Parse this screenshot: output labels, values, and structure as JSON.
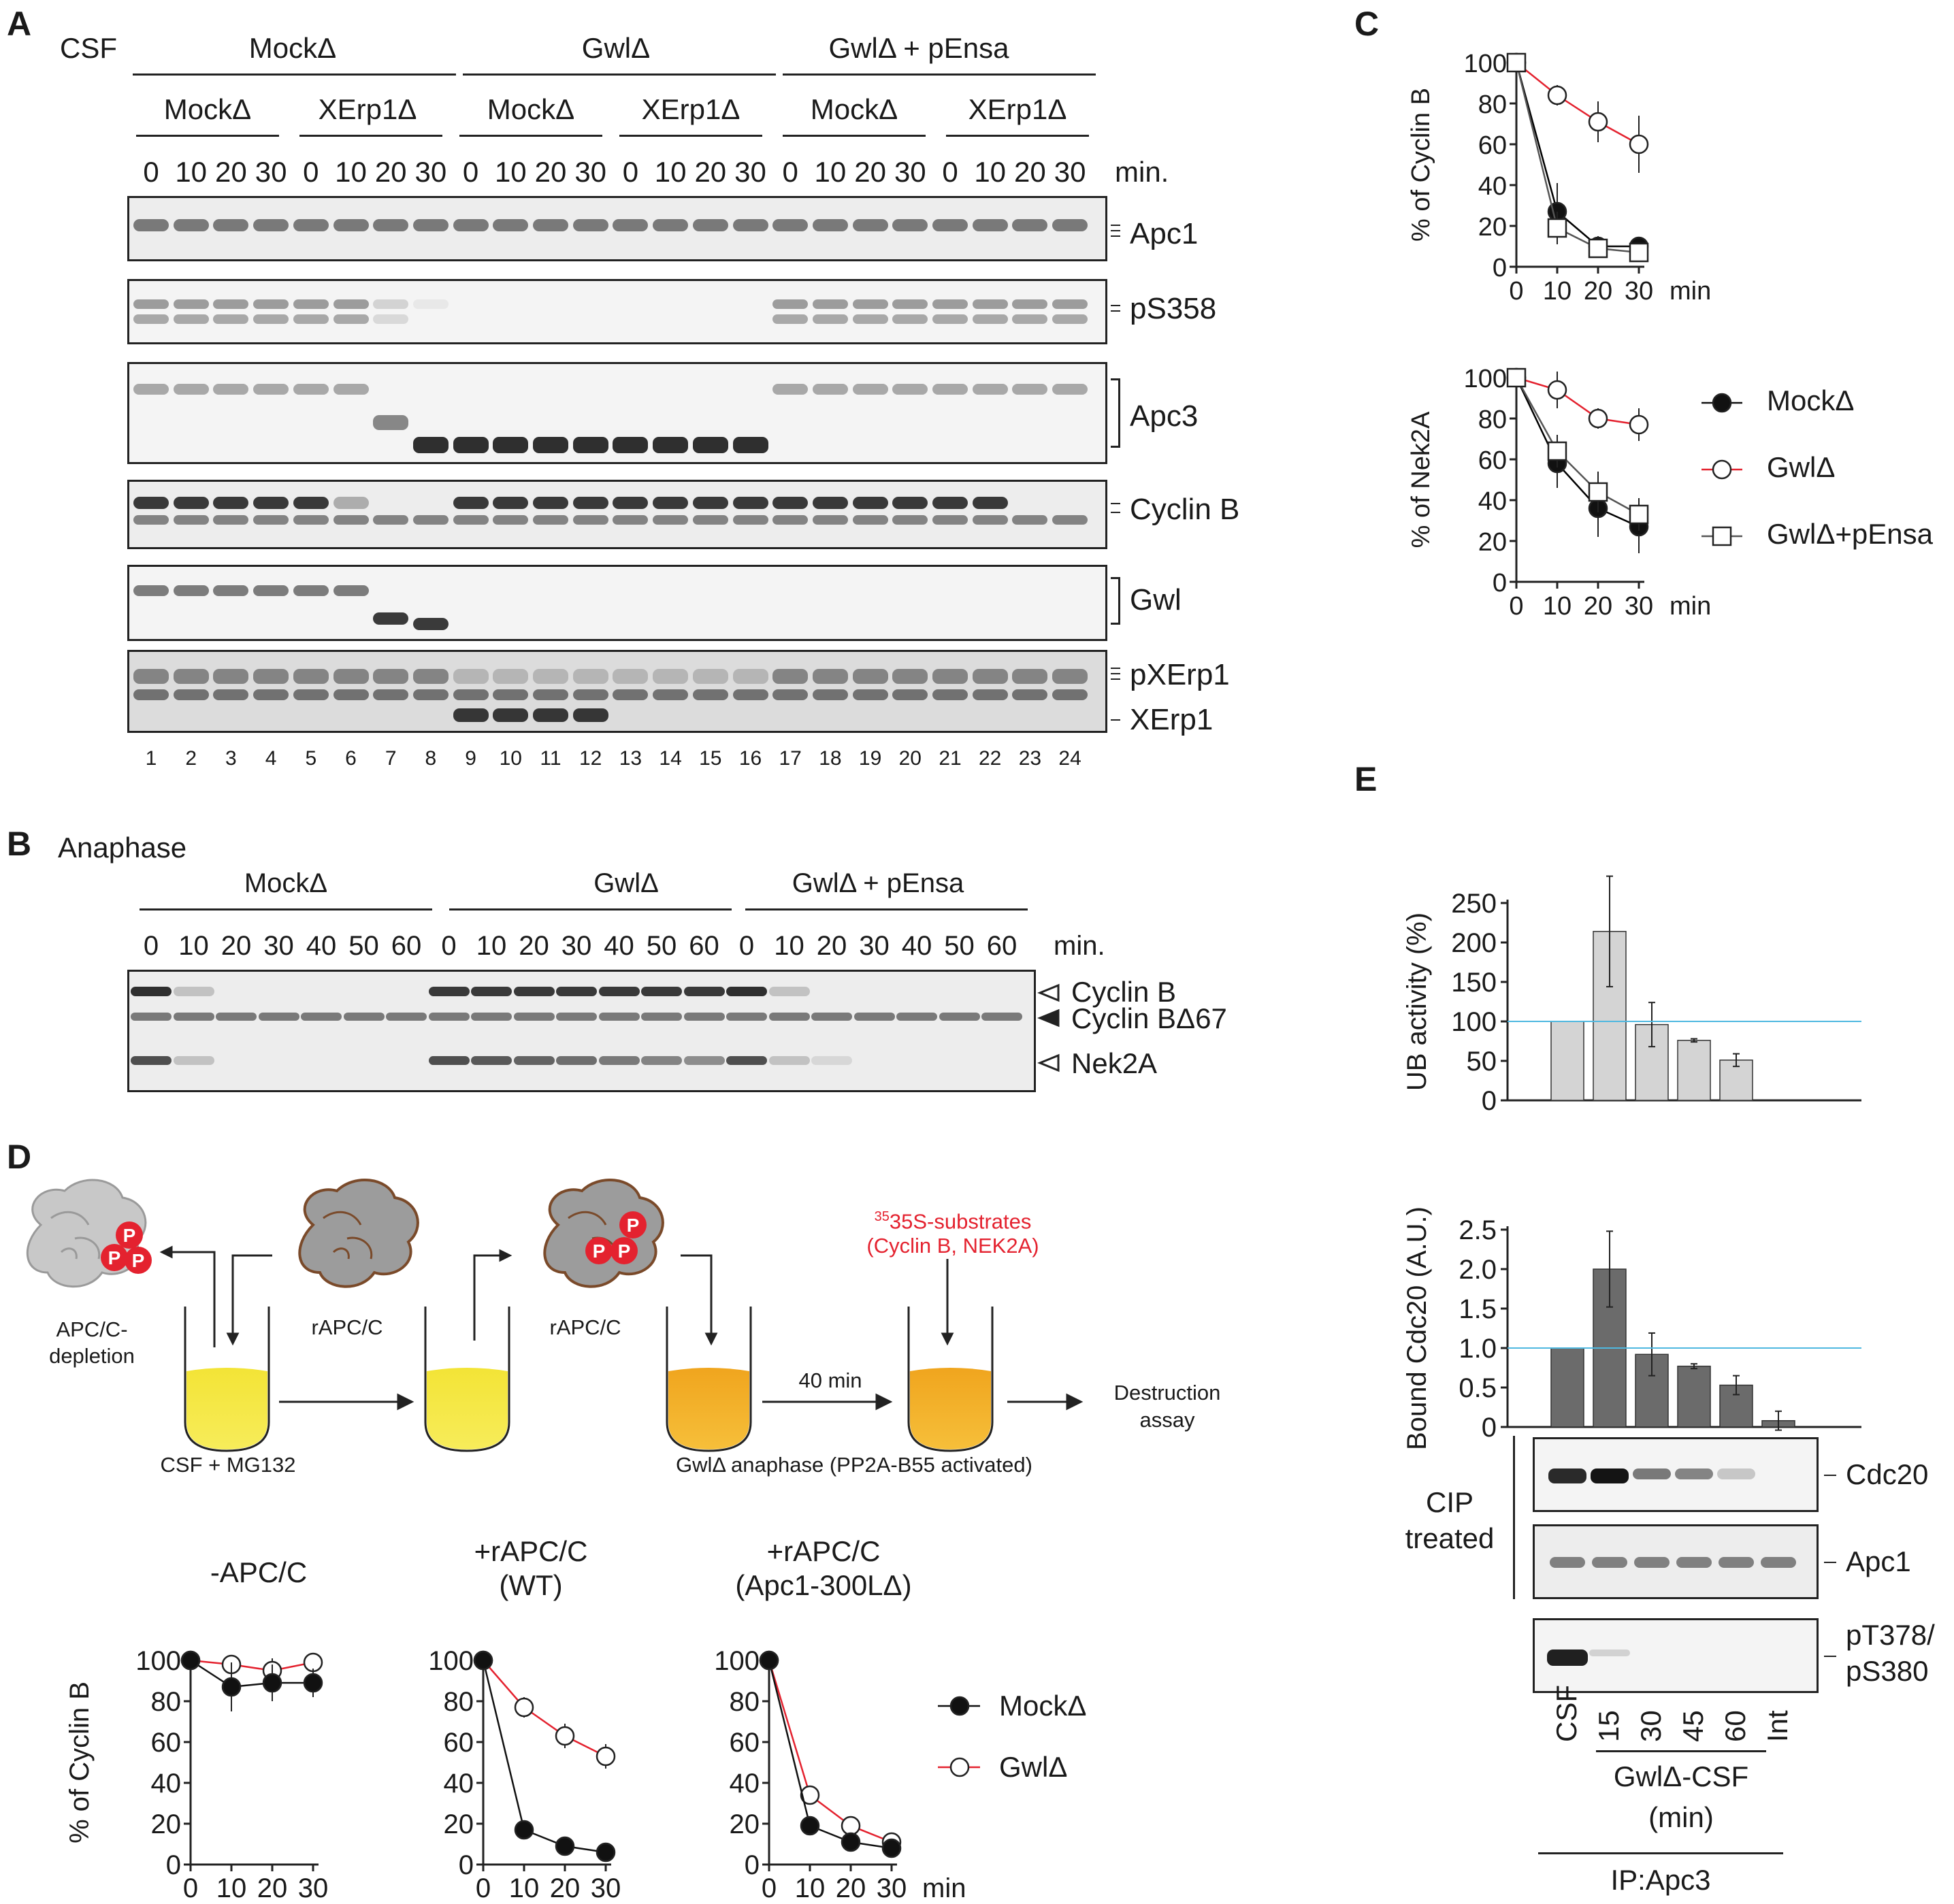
{
  "panel_letters": {
    "a": "A",
    "b": "B",
    "c": "C",
    "d": "D",
    "e": "E"
  },
  "panelA": {
    "csf": "CSF",
    "groups": [
      "MockΔ",
      "GwlΔ",
      "GwlΔ + pEnsa"
    ],
    "subgroups": [
      "MockΔ",
      "XErp1Δ",
      "MockΔ",
      "XErp1Δ",
      "MockΔ",
      "XErp1Δ"
    ],
    "timepoints": [
      "0",
      "10",
      "20",
      "30"
    ],
    "min": "min.",
    "blot_labels": [
      "Apc1",
      "pS358",
      "Apc3",
      "Cyclin B",
      "Gwl",
      "pXErp1",
      "XErp1"
    ],
    "lanes": [
      "1",
      "2",
      "3",
      "4",
      "5",
      "6",
      "7",
      "8",
      "9",
      "10",
      "11",
      "12",
      "13",
      "14",
      "15",
      "16",
      "17",
      "18",
      "19",
      "20",
      "21",
      "22",
      "23",
      "24"
    ]
  },
  "panelB": {
    "anaphase": "Anaphase",
    "groups": [
      "MockΔ",
      "GwlΔ",
      "GwlΔ + pEnsa"
    ],
    "timepoints": [
      "0",
      "10",
      "20",
      "30",
      "40",
      "50",
      "60"
    ],
    "min": "min.",
    "band_labels": [
      "Cyclin B",
      "Cyclin BΔ67",
      "Nek2A"
    ]
  },
  "panelC": {
    "chart_data": [
      {
        "type": "line",
        "ylabel": "% of Cyclin B",
        "xlabel": "min",
        "x": [
          0,
          10,
          20,
          30
        ],
        "ylim": [
          0,
          100
        ],
        "yticks": [
          0,
          20,
          40,
          60,
          80,
          100
        ],
        "series": [
          {
            "name": "MockΔ",
            "values": [
              100,
              27,
              10,
              10
            ]
          },
          {
            "name": "GwlΔ",
            "values": [
              100,
              84,
              71,
              60
            ]
          },
          {
            "name": "GwlΔ+pEnsa",
            "values": [
              100,
              19,
              9,
              7
            ]
          }
        ]
      },
      {
        "type": "line",
        "ylabel": "% of Nek2A",
        "xlabel": "min",
        "x": [
          0,
          10,
          20,
          30
        ],
        "ylim": [
          0,
          100
        ],
        "yticks": [
          0,
          20,
          40,
          60,
          80,
          100
        ],
        "series": [
          {
            "name": "MockΔ",
            "values": [
              100,
              58,
              36,
              27
            ]
          },
          {
            "name": "GwlΔ",
            "values": [
              100,
              94,
              80,
              77
            ]
          },
          {
            "name": "GwlΔ+pEnsa",
            "values": [
              100,
              64,
              44,
              33
            ]
          }
        ]
      }
    ],
    "legend": [
      "MockΔ",
      "GwlΔ",
      "GwlΔ+pEnsa"
    ],
    "colors": {
      "mock": "#000000",
      "gwl": "#e4222f",
      "pensa": "#555555"
    }
  },
  "panelD": {
    "apcc_depletion": "APC/C-\ndepletion",
    "rapcc_1": "rAPC/C",
    "rapcc_2": "rAPC/C",
    "substrates_line1": "35S-substrates",
    "substrates_line2": "(Cyclin B, NEK2A)",
    "time_40": "40 min",
    "destruction": "Destruction\nassay",
    "csf_mg132": "CSF + MG132",
    "gwl_anaphase": "GwlΔ anaphase (PP2A-B55 activated)",
    "chart_titles": [
      "-APC/C",
      "+rAPC/C\n(WT)",
      "+rAPC/C\n(Apc1-300LΔ)"
    ],
    "ylabel": "% of Cyclin B",
    "xlabel": "min",
    "legend": [
      "MockΔ",
      "GwlΔ"
    ],
    "chart_data": [
      {
        "type": "line",
        "title": "-APC/C",
        "x": [
          0,
          10,
          20,
          30
        ],
        "ylim": [
          0,
          100
        ],
        "series": [
          {
            "name": "MockΔ",
            "values": [
              100,
              87,
              89,
              89
            ]
          },
          {
            "name": "GwlΔ",
            "values": [
              100,
              98,
              95,
              99
            ]
          }
        ]
      },
      {
        "type": "line",
        "title": "+rAPC/C (WT)",
        "x": [
          0,
          10,
          20,
          30
        ],
        "ylim": [
          0,
          100
        ],
        "series": [
          {
            "name": "MockΔ",
            "values": [
              100,
              17,
              9,
              6
            ]
          },
          {
            "name": "GwlΔ",
            "values": [
              100,
              77,
              63,
              53
            ]
          }
        ]
      },
      {
        "type": "line",
        "title": "+rAPC/C (Apc1-300LΔ)",
        "x": [
          0,
          10,
          20,
          30
        ],
        "ylim": [
          0,
          100
        ],
        "series": [
          {
            "name": "MockΔ",
            "values": [
              100,
              19,
              11,
              8
            ]
          },
          {
            "name": "GwlΔ",
            "values": [
              100,
              34,
              19,
              11
            ]
          }
        ]
      }
    ]
  },
  "panelE": {
    "chart_data": [
      {
        "type": "bar",
        "ylabel": "UB activity (%)",
        "categories": [
          "CSF",
          "15",
          "30",
          "45",
          "60",
          "Int"
        ],
        "values": [
          100,
          214,
          96,
          76,
          51,
          0
        ],
        "errors": [
          0,
          70,
          28,
          2,
          8,
          0
        ],
        "ylim": [
          0,
          250
        ],
        "yticks": [
          0,
          50,
          100,
          150,
          200,
          250
        ],
        "reference_line": 100
      },
      {
        "type": "bar",
        "ylabel": "Bound Cdc20 (A.U.)",
        "categories": [
          "CSF",
          "15",
          "30",
          "45",
          "60",
          "Int"
        ],
        "values": [
          1.0,
          2.0,
          0.92,
          0.77,
          0.53,
          0.08
        ],
        "errors": [
          0,
          0.48,
          0.27,
          0.03,
          0.12,
          0.12
        ],
        "ylim": [
          0,
          2.5
        ],
        "yticks": [
          "0",
          "0.5",
          "1.0",
          "1.5",
          "2.0",
          "2.5"
        ],
        "reference_line": 1.0
      }
    ],
    "blot_labels": [
      "Cdc20",
      "Apc1",
      "pT378/\npS380"
    ],
    "cip": "CIP\ntreated",
    "lanes": [
      "CSF",
      "15",
      "30",
      "45",
      "60",
      "Int"
    ],
    "gwl_csf": "GwlΔ-CSF",
    "min": "(min)",
    "ip": "IP:Apc3",
    "colors": {
      "bar_light": "#d4d4d4",
      "bar_dark": "#6b6b6b",
      "reference": "#4fb8e0"
    }
  }
}
